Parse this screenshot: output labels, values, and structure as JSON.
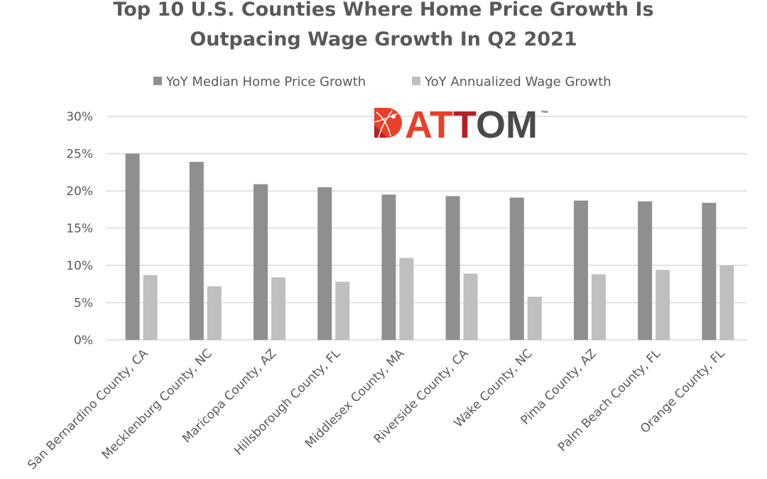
{
  "chart_data": {
    "type": "bar",
    "title": [
      "Top 10 U.S. Counties Where Home Price Growth Is",
      "Outpacing Wage Growth In Q2 2021"
    ],
    "categories": [
      "San Bernardino County, CA",
      "Mecklenburg County, NC",
      "Maricopa County, AZ",
      "Hillsborough County, FL",
      "Middlesex County, MA",
      "Riverside County, CA",
      "Wake County, NC",
      "Pima County, AZ",
      "Palm Beach County, FL",
      "Orange County, FL"
    ],
    "series": [
      {
        "name": "YoY Median Home Price Growth",
        "color": "#8f8f8f",
        "values": [
          25.0,
          23.9,
          20.9,
          20.5,
          19.5,
          19.3,
          19.1,
          18.7,
          18.6,
          18.4
        ]
      },
      {
        "name": "YoY Annualized Wage Growth",
        "color": "#bfbfbf",
        "values": [
          8.7,
          7.2,
          8.4,
          7.8,
          11.0,
          8.9,
          5.8,
          8.8,
          9.4,
          10.0
        ]
      }
    ],
    "ylim": [
      0,
      30
    ],
    "yticks": [
      "0%",
      "5%",
      "10%",
      "15%",
      "20%",
      "25%",
      "30%"
    ],
    "ytick_values": [
      0,
      5,
      10,
      15,
      20,
      25,
      30
    ],
    "grid": true,
    "legend_position": "top",
    "xlabel": "",
    "ylabel": ""
  },
  "logo": {
    "text": "ATTOM",
    "tm": "™",
    "colors": {
      "red": "#e8402a",
      "darkred": "#b52025",
      "gray": "#4a4a4a"
    }
  }
}
